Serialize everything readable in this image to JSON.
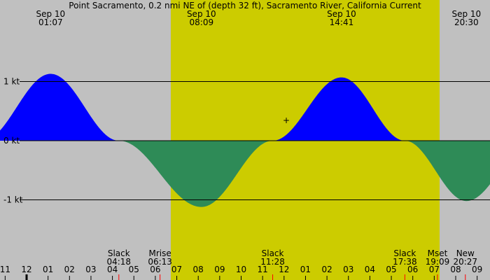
{
  "chart_data": {
    "type": "area",
    "title": "Point Sacramento, 0.2 nmi NE of (depth 32 ft), Sacramento River, California Current",
    "y_unit": "kt",
    "y_ticks": [
      {
        "value": 1,
        "label": "1 kt"
      },
      {
        "value": 0,
        "label": "0 kt"
      },
      {
        "value": -1,
        "label": "-1 kt"
      }
    ],
    "ylim": [
      -1.85,
      2.35
    ],
    "x_range_hours": [
      22.95,
      33.14
    ],
    "daylight": {
      "start_hour": 30.72,
      "end_hour": 43.25
    },
    "colors": {
      "flood": "#0000ff",
      "ebb": "#2e8b57",
      "day": "#cccc00",
      "night": "#c0c0c0"
    },
    "extrema": [
      {
        "date": "Sep 10",
        "time": "01:07",
        "hour": 25.12,
        "value": 1.13
      },
      {
        "date": "Sep 10",
        "time": "08:09",
        "hour": 32.15,
        "value": -1.12
      },
      {
        "date": "Sep 10",
        "time": "14:41",
        "hour": 38.68,
        "value": 1.07
      },
      {
        "date": "Sep 10",
        "time": "20:30",
        "hour": 44.5,
        "value": -1.02
      }
    ],
    "events": [
      {
        "label": "Slack",
        "time": "04:18",
        "hour": 28.3,
        "tick_color": "#ff0000"
      },
      {
        "label": "Mrise",
        "time": "06:13",
        "hour": 30.22,
        "tick_color": "#ff0000"
      },
      {
        "label": "Slack",
        "time": "11:28",
        "hour": 35.47,
        "tick_color": "#ff0000"
      },
      {
        "label": "Slack",
        "time": "17:38",
        "hour": 41.63,
        "tick_color": "#ff0000"
      },
      {
        "label": "Mset",
        "time": "19:09",
        "hour": 43.15,
        "tick_color": "#ff0000"
      },
      {
        "label": "New",
        "time": "20:27",
        "hour": 44.45,
        "tick_color": "#ff0000"
      }
    ],
    "hour_ticks": [
      "11",
      "12",
      "01",
      "02",
      "03",
      "04",
      "05",
      "06",
      "07",
      "08",
      "09",
      "10",
      "11",
      "12",
      "01",
      "02",
      "03",
      "04",
      "05",
      "06",
      "07",
      "08",
      "09"
    ],
    "hour_ticks_start": 23,
    "midnight_hour": 24
  }
}
